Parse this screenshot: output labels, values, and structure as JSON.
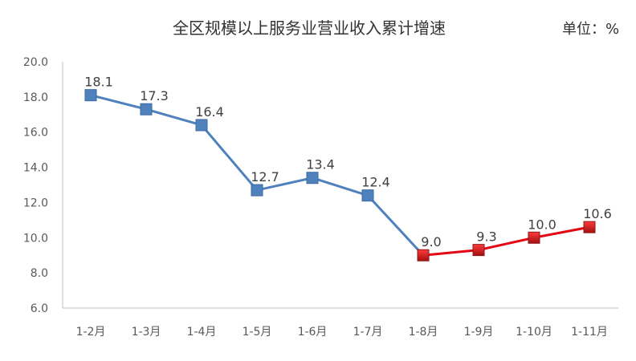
{
  "chart_data": {
    "type": "line",
    "title": "全区规模以上服务业营业收入累计增速",
    "unit_label": "单位：%",
    "categories": [
      "1-2月",
      "1-3月",
      "1-4月",
      "1-5月",
      "1-6月",
      "1-7月",
      "1-8月",
      "1-9月",
      "1-10月",
      "1-11月"
    ],
    "values": [
      18.1,
      17.3,
      16.4,
      12.7,
      13.4,
      12.4,
      9.0,
      9.3,
      10.0,
      10.6
    ],
    "value_labels": [
      "18.1",
      "17.3",
      "16.4",
      "12.7",
      "13.4",
      "12.4",
      "9.0",
      "9.3",
      "10.0",
      "10.6"
    ],
    "ylim": [
      6.0,
      20.0
    ],
    "yticks": [
      "20.0",
      "18.0",
      "16.0",
      "14.0",
      "12.0",
      "10.0",
      "8.0",
      "6.0"
    ],
    "highlight_from_index": 6,
    "colors": {
      "primary": "#4F81BD",
      "highlight": "#E30613",
      "marker_highlight": "#C0392B",
      "axis": "#BFBFBF"
    },
    "grid": false,
    "legend": "none"
  }
}
